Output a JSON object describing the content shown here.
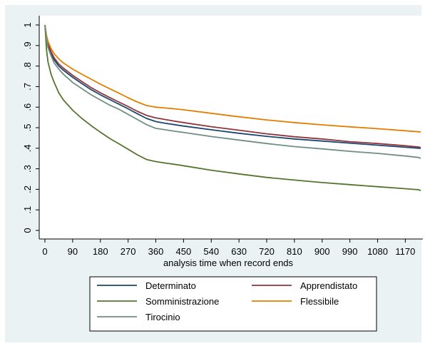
{
  "chart_data": {
    "type": "line",
    "title": "",
    "xlabel": "analysis time when record ends",
    "ylabel": "",
    "xlim": [
      0,
      1220
    ],
    "ylim": [
      0,
      1
    ],
    "x_ticks": [
      0,
      90,
      180,
      270,
      360,
      450,
      540,
      630,
      720,
      810,
      900,
      990,
      1080,
      1170
    ],
    "x_tick_labels": [
      "0",
      "90",
      "180",
      "270",
      "360",
      "450",
      "540",
      "630",
      "720",
      "810",
      "900",
      "990",
      "1080",
      "1170"
    ],
    "y_ticks": [
      0,
      0.1,
      0.2,
      0.3,
      0.4,
      0.5,
      0.6,
      0.7,
      0.8,
      0.9,
      1
    ],
    "y_tick_labels": [
      "0",
      ".1",
      ".2",
      ".3",
      ".4",
      ".5",
      ".6",
      ".7",
      ".8",
      ".9",
      "1"
    ],
    "grid": false,
    "legend_position": "bottom",
    "x": [
      0,
      5,
      10,
      20,
      30,
      45,
      60,
      90,
      120,
      150,
      180,
      210,
      240,
      270,
      300,
      330,
      360,
      390,
      420,
      450,
      540,
      630,
      720,
      810,
      900,
      990,
      1080,
      1170,
      1215,
      1220
    ],
    "series": [
      {
        "name": "Determinato",
        "color": "#1a476f",
        "values": [
          1.0,
          0.94,
          0.9,
          0.86,
          0.83,
          0.8,
          0.78,
          0.745,
          0.715,
          0.685,
          0.66,
          0.637,
          0.615,
          0.592,
          0.568,
          0.545,
          0.53,
          0.522,
          0.515,
          0.508,
          0.49,
          0.473,
          0.458,
          0.445,
          0.435,
          0.425,
          0.415,
          0.405,
          0.4,
          0.4
        ]
      },
      {
        "name": "Apprendistato",
        "color": "#90353b",
        "values": [
          1.0,
          0.945,
          0.91,
          0.87,
          0.84,
          0.81,
          0.79,
          0.755,
          0.725,
          0.695,
          0.67,
          0.647,
          0.625,
          0.603,
          0.58,
          0.56,
          0.548,
          0.54,
          0.532,
          0.525,
          0.505,
          0.488,
          0.47,
          0.456,
          0.445,
          0.432,
          0.423,
          0.412,
          0.406,
          0.402
        ]
      },
      {
        "name": "Somministrazione",
        "color": "#55752f",
        "values": [
          1.0,
          0.88,
          0.82,
          0.76,
          0.72,
          0.67,
          0.635,
          0.585,
          0.545,
          0.51,
          0.478,
          0.448,
          0.422,
          0.395,
          0.368,
          0.345,
          0.335,
          0.328,
          0.322,
          0.315,
          0.293,
          0.275,
          0.258,
          0.245,
          0.233,
          0.223,
          0.213,
          0.203,
          0.198,
          0.193
        ]
      },
      {
        "name": "Flessibile",
        "color": "#e37e00",
        "values": [
          1.0,
          0.95,
          0.92,
          0.885,
          0.86,
          0.835,
          0.815,
          0.785,
          0.76,
          0.736,
          0.712,
          0.69,
          0.668,
          0.646,
          0.625,
          0.608,
          0.6,
          0.596,
          0.592,
          0.587,
          0.57,
          0.553,
          0.538,
          0.525,
          0.514,
          0.504,
          0.495,
          0.485,
          0.48,
          0.478
        ]
      },
      {
        "name": "Tirocinio",
        "color": "#6e8e84",
        "values": [
          1.0,
          0.93,
          0.89,
          0.85,
          0.815,
          0.785,
          0.76,
          0.72,
          0.69,
          0.66,
          0.635,
          0.61,
          0.59,
          0.565,
          0.54,
          0.515,
          0.497,
          0.49,
          0.483,
          0.477,
          0.457,
          0.44,
          0.423,
          0.408,
          0.397,
          0.385,
          0.375,
          0.362,
          0.355,
          0.35
        ]
      }
    ]
  }
}
